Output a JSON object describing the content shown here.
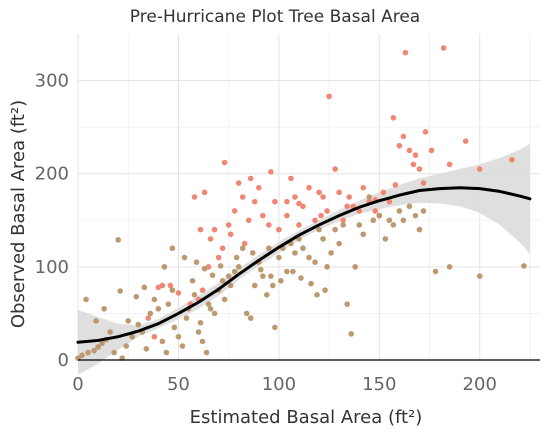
{
  "chart_data": {
    "type": "scatter",
    "title": "Pre-Hurricane Plot Tree Basal Area",
    "xlabel": "Estimated Basal Area (ft²)",
    "ylabel": "Observed Basal Area (ft²)",
    "xlim": [
      0,
      230
    ],
    "ylim": [
      0,
      350
    ],
    "x_ticks": [
      0,
      50,
      100,
      150,
      200
    ],
    "y_ticks": [
      0,
      100,
      200,
      300
    ],
    "grid": true,
    "legend": "none",
    "colors": {
      "red": "#f07f6e",
      "tan": "#b89366",
      "fit": "#000000",
      "ribbon": "#d9d9d9"
    },
    "series": [
      {
        "values": [
          [
            35,
            45
          ],
          [
            38,
            25
          ],
          [
            40,
            78
          ],
          [
            42,
            80
          ],
          [
            46,
            80
          ],
          [
            50,
            72
          ],
          [
            56,
            60
          ],
          [
            60,
            65
          ],
          [
            62,
            75
          ],
          [
            65,
            100
          ],
          [
            68,
            140
          ],
          [
            70,
            110
          ],
          [
            72,
            120
          ],
          [
            75,
            145
          ],
          [
            78,
            160
          ],
          [
            80,
            190
          ],
          [
            82,
            175
          ],
          [
            85,
            150
          ],
          [
            88,
            170
          ],
          [
            90,
            185
          ],
          [
            92,
            155
          ],
          [
            95,
            145
          ],
          [
            98,
            170
          ],
          [
            100,
            140
          ],
          [
            104,
            155
          ],
          [
            106,
            195
          ],
          [
            108,
            175
          ],
          [
            110,
            145
          ],
          [
            112,
            165
          ],
          [
            115,
            185
          ],
          [
            118,
            150
          ],
          [
            120,
            180
          ],
          [
            122,
            175
          ],
          [
            124,
            160
          ],
          [
            125,
            283
          ],
          [
            128,
            205
          ],
          [
            130,
            180
          ],
          [
            132,
            150
          ],
          [
            135,
            175
          ],
          [
            137,
            165
          ],
          [
            140,
            160
          ],
          [
            142,
            185
          ],
          [
            145,
            170
          ],
          [
            148,
            160
          ],
          [
            150,
            155
          ],
          [
            152,
            180
          ],
          [
            155,
            170
          ],
          [
            157,
            260
          ],
          [
            160,
            230
          ],
          [
            162,
            240
          ],
          [
            163,
            330
          ],
          [
            165,
            225
          ],
          [
            168,
            220
          ],
          [
            170,
            205
          ],
          [
            173,
            245
          ],
          [
            176,
            225
          ],
          [
            182,
            335
          ],
          [
            185,
            210
          ],
          [
            193,
            235
          ],
          [
            200,
            205
          ],
          [
            216,
            215
          ],
          [
            58,
            175
          ],
          [
            63,
            180
          ],
          [
            73,
            212
          ],
          [
            86,
            195
          ],
          [
            96,
            202
          ],
          [
            104,
            170
          ],
          [
            110,
            168
          ],
          [
            121,
            155
          ],
          [
            134,
            165
          ],
          [
            148,
            172
          ],
          [
            158,
            188
          ],
          [
            167,
            210
          ],
          [
            172,
            190
          ],
          [
            61,
            140
          ],
          [
            66,
            130
          ],
          [
            76,
            135
          ],
          [
            83,
            125
          ]
        ]
      },
      {
        "values": [
          [
            0,
            2
          ],
          [
            2,
            5
          ],
          [
            5,
            8
          ],
          [
            8,
            10
          ],
          [
            10,
            14
          ],
          [
            12,
            18
          ],
          [
            14,
            22
          ],
          [
            16,
            30
          ],
          [
            18,
            8
          ],
          [
            20,
            129
          ],
          [
            22,
            2
          ],
          [
            24,
            15
          ],
          [
            25,
            42
          ],
          [
            27,
            25
          ],
          [
            30,
            38
          ],
          [
            32,
            30
          ],
          [
            34,
            12
          ],
          [
            36,
            50
          ],
          [
            38,
            65
          ],
          [
            40,
            55
          ],
          [
            42,
            20
          ],
          [
            44,
            8
          ],
          [
            45,
            60
          ],
          [
            47,
            75
          ],
          [
            48,
            35
          ],
          [
            50,
            25
          ],
          [
            52,
            15
          ],
          [
            54,
            45
          ],
          [
            55,
            55
          ],
          [
            57,
            85
          ],
          [
            58,
            70
          ],
          [
            60,
            30
          ],
          [
            61,
            40
          ],
          [
            62,
            20
          ],
          [
            64,
            8
          ],
          [
            65,
            60
          ],
          [
            66,
            55
          ],
          [
            68,
            50
          ],
          [
            70,
            75
          ],
          [
            72,
            85
          ],
          [
            73,
            65
          ],
          [
            75,
            90
          ],
          [
            76,
            80
          ],
          [
            78,
            95
          ],
          [
            80,
            100
          ],
          [
            82,
            120
          ],
          [
            84,
            50
          ],
          [
            86,
            45
          ],
          [
            88,
            80
          ],
          [
            90,
            105
          ],
          [
            92,
            90
          ],
          [
            94,
            70
          ],
          [
            95,
            120
          ],
          [
            97,
            80
          ],
          [
            98,
            35
          ],
          [
            100,
            110
          ],
          [
            102,
            120
          ],
          [
            104,
            95
          ],
          [
            106,
            125
          ],
          [
            108,
            115
          ],
          [
            110,
            130
          ],
          [
            112,
            120
          ],
          [
            115,
            110
          ],
          [
            118,
            105
          ],
          [
            120,
            140
          ],
          [
            122,
            130
          ],
          [
            124,
            100
          ],
          [
            126,
            115
          ],
          [
            128,
            140
          ],
          [
            130,
            125
          ],
          [
            132,
            145
          ],
          [
            134,
            60
          ],
          [
            136,
            28
          ],
          [
            138,
            100
          ],
          [
            140,
            145
          ],
          [
            142,
            135
          ],
          [
            145,
            175
          ],
          [
            147,
            150
          ],
          [
            150,
            155
          ],
          [
            153,
            130
          ],
          [
            155,
            150
          ],
          [
            157,
            145
          ],
          [
            160,
            160
          ],
          [
            162,
            150
          ],
          [
            165,
            165
          ],
          [
            168,
            155
          ],
          [
            170,
            140
          ],
          [
            172,
            160
          ],
          [
            178,
            95
          ],
          [
            185,
            100
          ],
          [
            200,
            90
          ],
          [
            222,
            101
          ],
          [
            4,
            65
          ],
          [
            9,
            42
          ],
          [
            13,
            55
          ],
          [
            21,
            74
          ],
          [
            29,
            68
          ],
          [
            33,
            78
          ],
          [
            43,
            100
          ],
          [
            47,
            120
          ],
          [
            53,
            110
          ],
          [
            59,
            105
          ],
          [
            63,
            98
          ],
          [
            67,
            91
          ],
          [
            71,
            101
          ],
          [
            79,
            110
          ],
          [
            87,
            115
          ],
          [
            91,
            97
          ],
          [
            96,
            90
          ],
          [
            101,
            85
          ],
          [
            107,
            95
          ],
          [
            111,
            88
          ],
          [
            116,
            82
          ],
          [
            119,
            70
          ],
          [
            123,
            75
          ]
        ]
      }
    ],
    "fit_curve": {
      "values": [
        [
          0,
          19
        ],
        [
          10,
          21
        ],
        [
          20,
          25
        ],
        [
          30,
          31
        ],
        [
          40,
          39
        ],
        [
          50,
          50
        ],
        [
          60,
          62
        ],
        [
          70,
          76
        ],
        [
          80,
          92
        ],
        [
          90,
          107
        ],
        [
          100,
          121
        ],
        [
          110,
          134
        ],
        [
          120,
          145
        ],
        [
          130,
          155
        ],
        [
          140,
          164
        ],
        [
          150,
          171
        ],
        [
          160,
          177
        ],
        [
          170,
          182
        ],
        [
          180,
          184
        ],
        [
          190,
          185
        ],
        [
          200,
          184
        ],
        [
          210,
          181
        ],
        [
          220,
          176
        ],
        [
          225,
          173
        ]
      ]
    },
    "confidence_band": {
      "upper": [
        [
          0,
          54
        ],
        [
          10,
          46
        ],
        [
          20,
          39
        ],
        [
          30,
          37
        ],
        [
          40,
          44
        ],
        [
          50,
          56
        ],
        [
          60,
          69
        ],
        [
          70,
          83
        ],
        [
          80,
          98
        ],
        [
          90,
          113
        ],
        [
          100,
          127
        ],
        [
          110,
          139
        ],
        [
          120,
          150
        ],
        [
          130,
          161
        ],
        [
          140,
          171
        ],
        [
          150,
          180
        ],
        [
          160,
          188
        ],
        [
          170,
          195
        ],
        [
          180,
          200
        ],
        [
          190,
          205
        ],
        [
          200,
          210
        ],
        [
          210,
          217
        ],
        [
          220,
          226
        ],
        [
          225,
          232
        ]
      ],
      "lower": [
        [
          0,
          -16
        ],
        [
          10,
          -4
        ],
        [
          20,
          11
        ],
        [
          30,
          25
        ],
        [
          40,
          34
        ],
        [
          50,
          44
        ],
        [
          60,
          55
        ],
        [
          70,
          69
        ],
        [
          80,
          86
        ],
        [
          90,
          101
        ],
        [
          100,
          115
        ],
        [
          110,
          129
        ],
        [
          120,
          140
        ],
        [
          130,
          149
        ],
        [
          140,
          157
        ],
        [
          150,
          162
        ],
        [
          160,
          166
        ],
        [
          170,
          169
        ],
        [
          180,
          168
        ],
        [
          190,
          165
        ],
        [
          200,
          158
        ],
        [
          210,
          145
        ],
        [
          220,
          126
        ],
        [
          225,
          114
        ]
      ]
    }
  }
}
